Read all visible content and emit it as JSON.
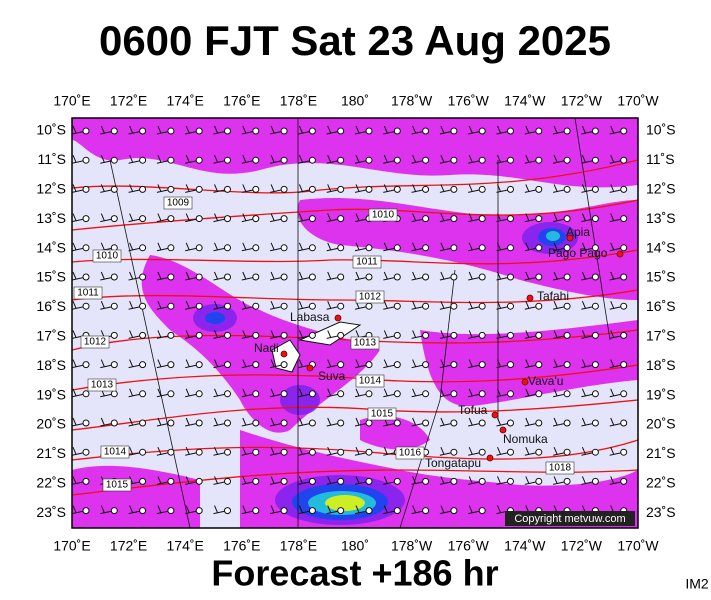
{
  "title": "0600 FJT Sat 23 Aug 2025",
  "footer": "Forecast +186 hr",
  "corner_label": "IM2",
  "copyright": "Copyright metvuw.com",
  "longitude_labels": [
    "170˚E",
    "172˚E",
    "174˚E",
    "176˚E",
    "178˚E",
    "180˚",
    "178˚W",
    "176˚W",
    "174˚W",
    "172˚W",
    "170˚W"
  ],
  "latitude_labels": [
    "10˚S",
    "11˚S",
    "12˚S",
    "13˚S",
    "14˚S",
    "15˚S",
    "16˚S",
    "17˚S",
    "18˚S",
    "19˚S",
    "20˚S",
    "21˚S",
    "22˚S",
    "23˚S"
  ],
  "places": [
    "Apia",
    "Pago Pago",
    "Tafahi",
    "Labasa",
    "Nadi",
    "Suva",
    "Vava'u",
    "Tofua",
    "Nomuka",
    "Tongatapu"
  ],
  "isobar_labels": [
    "1009",
    "1010",
    "1010",
    "1011",
    "1011",
    "1012",
    "1012",
    "1013",
    "1013",
    "1014",
    "1015",
    "1014",
    "1016",
    "1018",
    "1015"
  ]
}
